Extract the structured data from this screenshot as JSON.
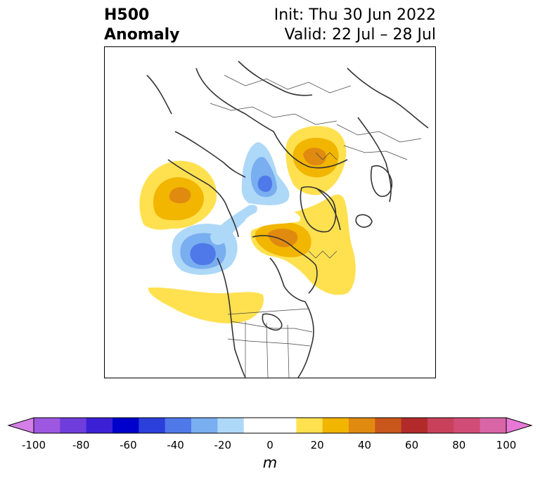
{
  "title": {
    "left_line1": "H500",
    "left_line2": "Anomaly",
    "right_line1": "Init: Thu 30 Jun 2022",
    "right_line2": "Valid: 22 Jul – 28 Jul"
  },
  "colorbar": {
    "units": "m",
    "ticks": [
      "-100",
      "-80",
      "-60",
      "-40",
      "-20",
      "0",
      "20",
      "40",
      "60",
      "80",
      "100"
    ],
    "colors": [
      "#d67ee8",
      "#9e57e0",
      "#6f3ddb",
      "#3b20d6",
      "#0000cc",
      "#2b3fdb",
      "#4f78e8",
      "#79aef0",
      "#aed8f7",
      "#ffffff",
      "#ffffff",
      "#ffe150",
      "#f2b500",
      "#e08a10",
      "#c9561a",
      "#b22a2a",
      "#c8405a",
      "#d14d78",
      "#d866a6",
      "#e878d6"
    ]
  },
  "map": {
    "projection": "north polar stereographic",
    "anomaly_colors": {
      "pos1": "#ffe150",
      "pos2": "#f2b500",
      "pos3": "#e08a10",
      "neg1": "#aed8f7",
      "neg2": "#79aef0",
      "neg3": "#4f78e8"
    }
  }
}
